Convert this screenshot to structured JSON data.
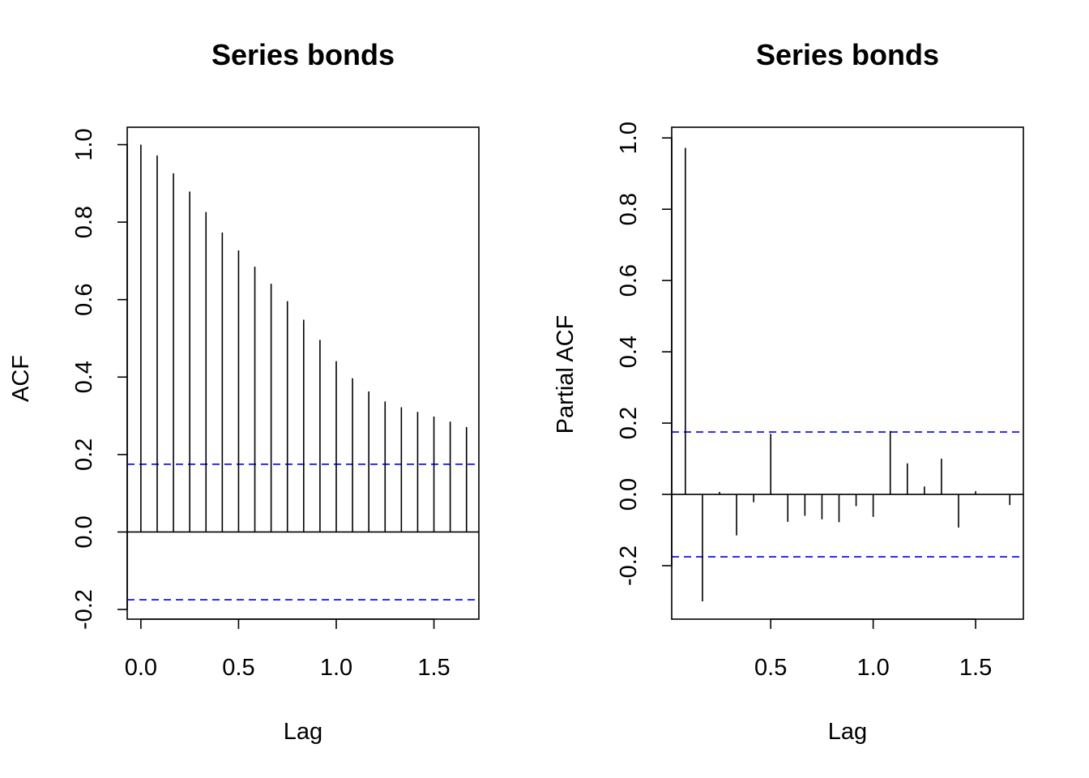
{
  "chart_data": [
    {
      "type": "bar",
      "title": "Series  bonds",
      "xlabel": "Lag",
      "ylabel": "ACF",
      "xlim": [
        -0.07,
        1.73
      ],
      "ylim": [
        -0.225,
        1.045
      ],
      "xticks": [
        "0.0",
        "0.5",
        "1.0",
        "1.5"
      ],
      "xtick_values": [
        0,
        0.5,
        1,
        1.5
      ],
      "yticks": [
        "-0.2",
        "0.0",
        "0.2",
        "0.4",
        "0.6",
        "0.8",
        "1.0"
      ],
      "ytick_values": [
        -0.2,
        0,
        0.2,
        0.4,
        0.6,
        0.8,
        1.0
      ],
      "x": [
        0,
        0.0833,
        0.1667,
        0.25,
        0.3333,
        0.4167,
        0.5,
        0.5833,
        0.6667,
        0.75,
        0.8333,
        0.9167,
        1.0,
        1.0833,
        1.1667,
        1.25,
        1.3333,
        1.4167,
        1.5,
        1.5833,
        1.6667
      ],
      "values": [
        1.0,
        0.972,
        0.926,
        0.879,
        0.826,
        0.773,
        0.727,
        0.685,
        0.641,
        0.596,
        0.548,
        0.496,
        0.441,
        0.397,
        0.363,
        0.337,
        0.322,
        0.31,
        0.298,
        0.285,
        0.271
      ],
      "ci": [
        0.175,
        -0.175
      ],
      "ci_color": "#0000ee",
      "bar_color": "#000000",
      "grid": false
    },
    {
      "type": "bar",
      "title": "Series  bonds",
      "xlabel": "Lag",
      "ylabel": "Partial ACF",
      "xlim": [
        0.0167,
        1.733
      ],
      "ylim": [
        -0.35,
        1.03
      ],
      "xticks": [
        "0.5",
        "1.0",
        "1.5"
      ],
      "xtick_values": [
        0.5,
        1,
        1.5
      ],
      "yticks": [
        "-0.2",
        "0.0",
        "0.2",
        "0.4",
        "0.6",
        "0.8",
        "1.0"
      ],
      "ytick_values": [
        -0.2,
        0,
        0.2,
        0.4,
        0.6,
        0.8,
        1.0
      ],
      "x": [
        0.0833,
        0.1667,
        0.25,
        0.3333,
        0.4167,
        0.5,
        0.5833,
        0.6667,
        0.75,
        0.8333,
        0.9167,
        1.0,
        1.0833,
        1.1667,
        1.25,
        1.3333,
        1.4167,
        1.5,
        1.5833,
        1.6667
      ],
      "values": [
        0.972,
        -0.3,
        0.007,
        -0.115,
        -0.022,
        0.17,
        -0.077,
        -0.06,
        -0.07,
        -0.078,
        -0.033,
        -0.063,
        0.178,
        0.087,
        0.022,
        0.1,
        -0.093,
        0.009,
        0.0,
        -0.03
      ],
      "ci": [
        0.175,
        -0.175
      ],
      "ci_color": "#0000ee",
      "bar_color": "#000000",
      "grid": false
    }
  ]
}
